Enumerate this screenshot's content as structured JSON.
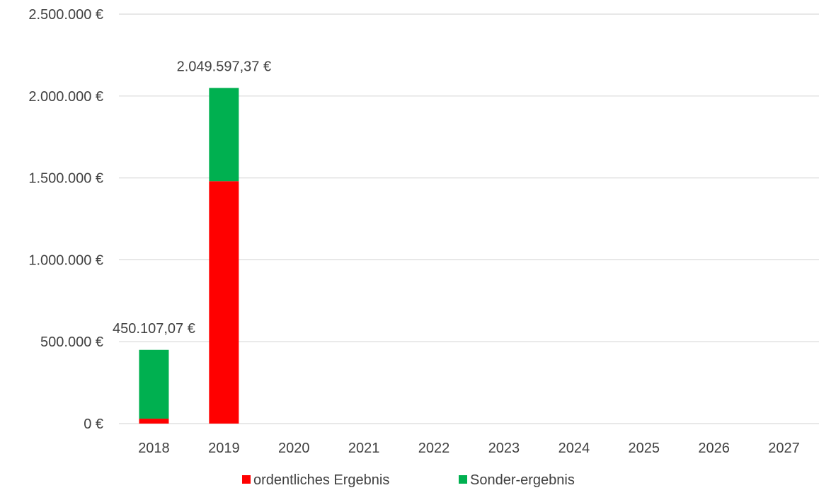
{
  "chart_data": {
    "type": "bar",
    "stacked": true,
    "title": "",
    "xlabel": "",
    "ylabel": "",
    "categories": [
      "2018",
      "2019",
      "2020",
      "2021",
      "2022",
      "2023",
      "2024",
      "2025",
      "2026",
      "2027"
    ],
    "series": [
      {
        "name": "ordentliches Ergebnis",
        "color": "#ff0000",
        "values": [
          30000,
          1480000,
          0,
          0,
          0,
          0,
          0,
          0,
          0,
          0
        ]
      },
      {
        "name": "Sonder-ergebnis",
        "color": "#00b050",
        "values": [
          420107.07,
          569597.37,
          0,
          0,
          0,
          0,
          0,
          0,
          0,
          0
        ]
      }
    ],
    "total_labels": [
      "450.107,07 €",
      "2.049.597,37 €",
      "",
      "",
      "",
      "",
      "",
      "",
      "",
      ""
    ],
    "ylim": [
      0,
      2500000
    ],
    "yticks": [
      0,
      500000,
      1000000,
      1500000,
      2000000,
      2500000
    ],
    "ytick_labels": [
      "0 €",
      "500.000 €",
      "1.000.000 €",
      "1.500.000 €",
      "2.000.000 €",
      "2.500.000 €"
    ],
    "grid": true,
    "legend_position": "bottom"
  }
}
